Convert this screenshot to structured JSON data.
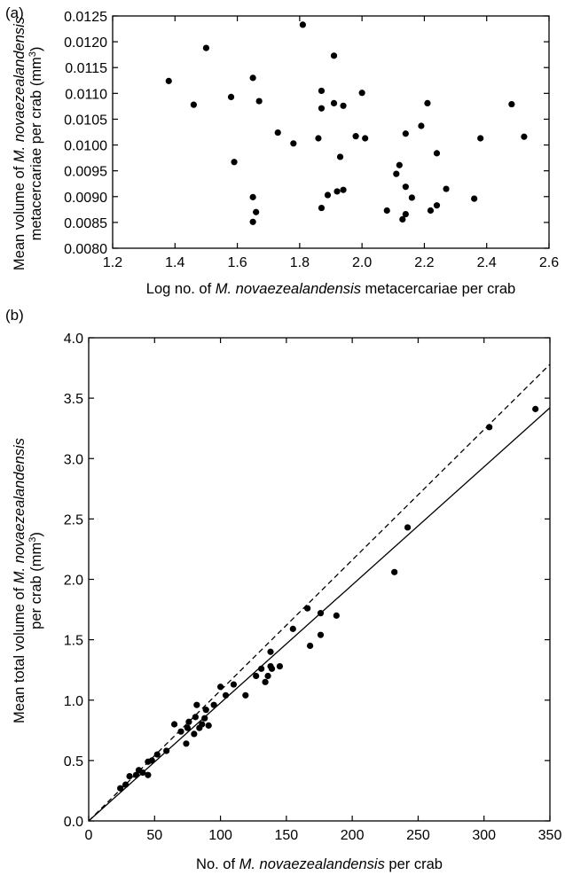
{
  "chart_data": [
    {
      "type": "scatter",
      "panel_label": "(a)",
      "xlabel": {
        "pre": "Log no. of ",
        "italic": "M. novaezealandensis",
        "post": " metacercariae per crab"
      },
      "ylabel": {
        "line1": {
          "pre": "Mean volume of ",
          "italic": "M. novaezealandensis",
          "post": ""
        },
        "line2": {
          "pre": "metacercariae per crab (mm",
          "sup": "3",
          "post": ")"
        }
      },
      "xlim": [
        1.2,
        2.6
      ],
      "ylim": [
        0.008,
        0.0125
      ],
      "xticks": [
        1.2,
        1.4,
        1.6,
        1.8,
        2.0,
        2.2,
        2.4,
        2.6
      ],
      "xtick_labels": [
        "1.2",
        "1.4",
        "1.6",
        "1.8",
        "2.0",
        "2.2",
        "2.4",
        "2.6"
      ],
      "yticks": [
        0.008,
        0.0085,
        0.009,
        0.0095,
        0.01,
        0.0105,
        0.011,
        0.0115,
        0.012,
        0.0125
      ],
      "ytick_labels": [
        "0.0080",
        "0.0085",
        "0.0090",
        "0.0095",
        "0.0100",
        "0.0105",
        "0.0110",
        "0.0115",
        "0.0120",
        "0.0125"
      ],
      "grid": false,
      "points": [
        [
          1.38,
          0.01124
        ],
        [
          1.46,
          0.01078
        ],
        [
          1.5,
          0.01188
        ],
        [
          1.58,
          0.01093
        ],
        [
          1.59,
          0.00967
        ],
        [
          1.65,
          0.0113
        ],
        [
          1.65,
          0.00899
        ],
        [
          1.65,
          0.00851
        ],
        [
          1.66,
          0.0087
        ],
        [
          1.67,
          0.01085
        ],
        [
          1.73,
          0.01024
        ],
        [
          1.78,
          0.01003
        ],
        [
          1.81,
          0.01233
        ],
        [
          1.86,
          0.01013
        ],
        [
          1.87,
          0.00878
        ],
        [
          1.87,
          0.01105
        ],
        [
          1.87,
          0.01071
        ],
        [
          1.89,
          0.00903
        ],
        [
          1.91,
          0.01173
        ],
        [
          1.91,
          0.01081
        ],
        [
          1.92,
          0.0091
        ],
        [
          1.93,
          0.00977
        ],
        [
          1.94,
          0.01076
        ],
        [
          1.94,
          0.00913
        ],
        [
          1.98,
          0.01017
        ],
        [
          2.0,
          0.01101
        ],
        [
          2.01,
          0.01013
        ],
        [
          2.08,
          0.00873
        ],
        [
          2.11,
          0.00944
        ],
        [
          2.12,
          0.00961
        ],
        [
          2.13,
          0.00856
        ],
        [
          2.14,
          0.01022
        ],
        [
          2.14,
          0.00866
        ],
        [
          2.14,
          0.00919
        ],
        [
          2.16,
          0.00898
        ],
        [
          2.19,
          0.01037
        ],
        [
          2.21,
          0.01081
        ],
        [
          2.22,
          0.00873
        ],
        [
          2.24,
          0.00984
        ],
        [
          2.24,
          0.00883
        ],
        [
          2.27,
          0.00915
        ],
        [
          2.36,
          0.00896
        ],
        [
          2.38,
          0.01013
        ],
        [
          2.48,
          0.01079
        ],
        [
          2.52,
          0.01016
        ]
      ]
    },
    {
      "type": "scatter",
      "panel_label": "(b)",
      "xlabel": {
        "pre": "No. of ",
        "italic": "M. novaezealandensis",
        "post": " per crab"
      },
      "ylabel": {
        "line1": {
          "pre": "Mean total volume of ",
          "italic": "M. novaezealandensis",
          "post": ""
        },
        "line2": {
          "pre": "per crab (mm",
          "sup": "3",
          "post": ")"
        }
      },
      "xlim": [
        0,
        350
      ],
      "ylim": [
        0,
        4.0
      ],
      "xticks": [
        0,
        50,
        100,
        150,
        200,
        250,
        300,
        350
      ],
      "xtick_labels": [
        "0",
        "50",
        "100",
        "150",
        "200",
        "250",
        "300",
        "350"
      ],
      "yticks": [
        0,
        0.5,
        1.0,
        1.5,
        2.0,
        2.5,
        3.0,
        3.5,
        4.0
      ],
      "ytick_labels": [
        "0.0",
        "0.5",
        "1.0",
        "1.5",
        "2.0",
        "2.5",
        "3.0",
        "3.5",
        "4.0"
      ],
      "grid": false,
      "lines": [
        {
          "style": "solid",
          "x": [
            0,
            350
          ],
          "y": [
            0,
            3.42
          ]
        },
        {
          "style": "dashed",
          "x": [
            0,
            350
          ],
          "y": [
            0,
            3.78
          ]
        }
      ],
      "points": [
        [
          24,
          0.27
        ],
        [
          28,
          0.3
        ],
        [
          31,
          0.37
        ],
        [
          36,
          0.38
        ],
        [
          38,
          0.42
        ],
        [
          41,
          0.4
        ],
        [
          45,
          0.38
        ],
        [
          45,
          0.49
        ],
        [
          48,
          0.5
        ],
        [
          52,
          0.55
        ],
        [
          59,
          0.58
        ],
        [
          65,
          0.8
        ],
        [
          70,
          0.74
        ],
        [
          74,
          0.64
        ],
        [
          75,
          0.77
        ],
        [
          76,
          0.82
        ],
        [
          80,
          0.72
        ],
        [
          81,
          0.86
        ],
        [
          82,
          0.96
        ],
        [
          84,
          0.77
        ],
        [
          86,
          0.8
        ],
        [
          88,
          0.85
        ],
        [
          89,
          0.92
        ],
        [
          91,
          0.79
        ],
        [
          95,
          0.96
        ],
        [
          100,
          1.11
        ],
        [
          104,
          1.04
        ],
        [
          110,
          1.13
        ],
        [
          119,
          1.04
        ],
        [
          127,
          1.2
        ],
        [
          131,
          1.26
        ],
        [
          134,
          1.15
        ],
        [
          136,
          1.2
        ],
        [
          138,
          1.28
        ],
        [
          138,
          1.4
        ],
        [
          139,
          1.26
        ],
        [
          145,
          1.28
        ],
        [
          155,
          1.59
        ],
        [
          166,
          1.76
        ],
        [
          168,
          1.45
        ],
        [
          176,
          1.72
        ],
        [
          176,
          1.54
        ],
        [
          188,
          1.7
        ],
        [
          232,
          2.06
        ],
        [
          242,
          2.43
        ],
        [
          304,
          3.26
        ],
        [
          339,
          3.41
        ]
      ]
    }
  ]
}
